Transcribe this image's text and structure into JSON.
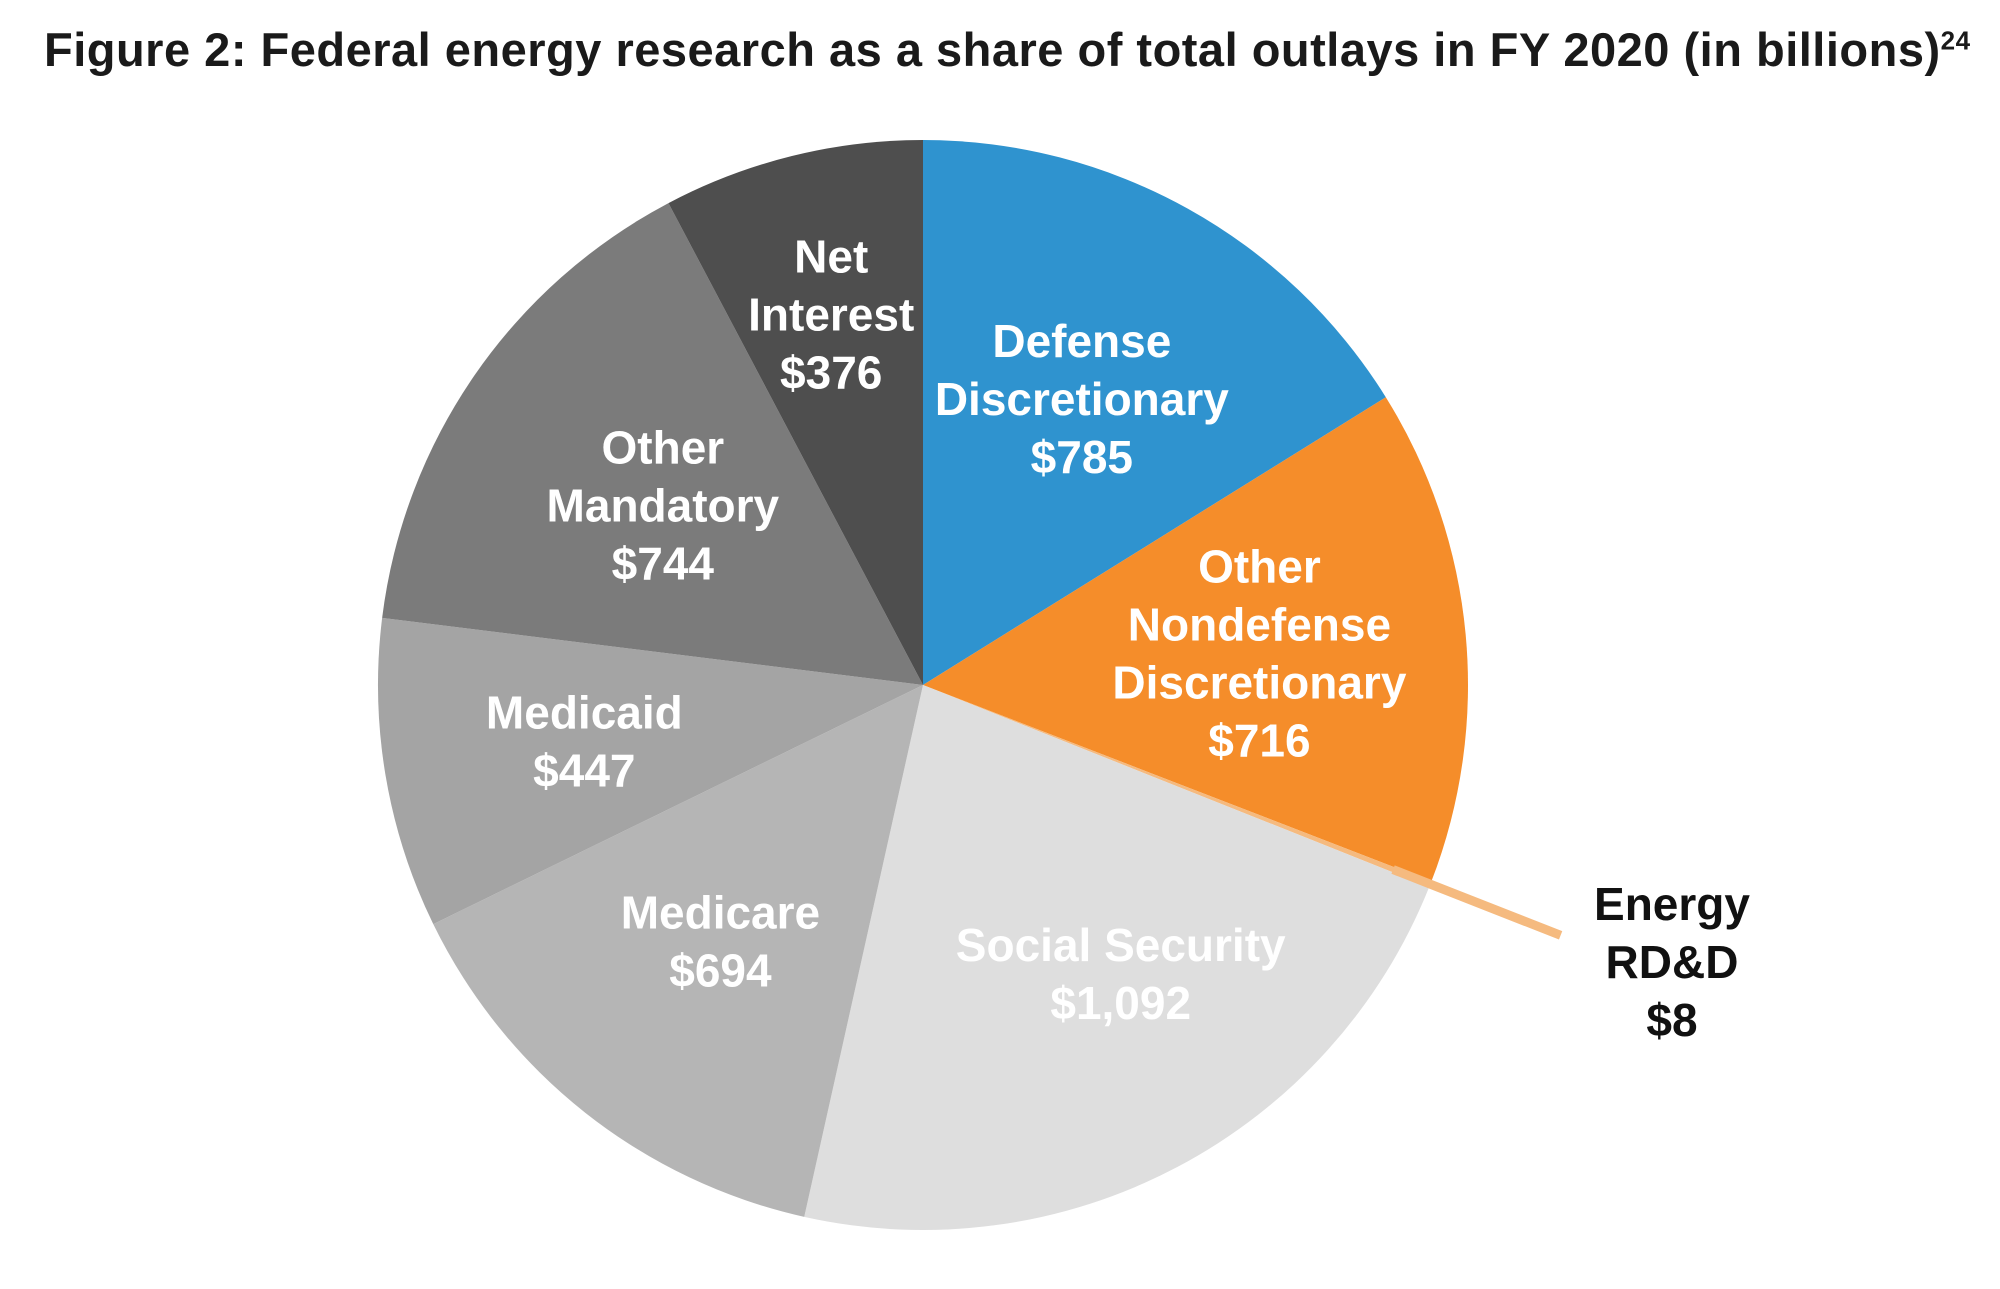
{
  "figure": {
    "title": "Figure 2: Federal energy research as a share of total outlays in FY 2020 (in billions)",
    "footnote_ref": "24"
  },
  "chart_data": {
    "type": "pie",
    "title": "Figure 2: Federal energy research as a share of total outlays in FY 2020 (in billions)",
    "unit": "billions",
    "slices": [
      {
        "label": [
          "Defense",
          "Discretionary",
          "$785"
        ],
        "value": 785,
        "color": "#2f93cf",
        "text_color": "#ffffff"
      },
      {
        "label": [
          "Other",
          "Nondefense",
          "Discretionary",
          "$716"
        ],
        "value": 716,
        "color": "#f58d2a",
        "text_color": "#ffffff"
      },
      {
        "label": [
          "Energy",
          "RD&D",
          "$8"
        ],
        "value": 8,
        "color": "#f5ba7f",
        "text_color": "#111111",
        "callout": true
      },
      {
        "label": [
          "Social Security",
          "$1,092"
        ],
        "value": 1092,
        "color": "#dedede",
        "text_color": "#ffffff"
      },
      {
        "label": [
          "Medicare",
          "$694"
        ],
        "value": 694,
        "color": "#b5b5b5",
        "text_color": "#ffffff"
      },
      {
        "label": [
          "Medicaid",
          "$447"
        ],
        "value": 447,
        "color": "#a4a4a4",
        "text_color": "#ffffff"
      },
      {
        "label": [
          "Other",
          "Mandatory",
          "$744"
        ],
        "value": 744,
        "color": "#7b7b7b",
        "text_color": "#ffffff"
      },
      {
        "label": [
          "Net",
          "Interest",
          "$376"
        ],
        "value": 376,
        "color": "#4e4e4e",
        "text_color": "#ffffff"
      }
    ]
  }
}
